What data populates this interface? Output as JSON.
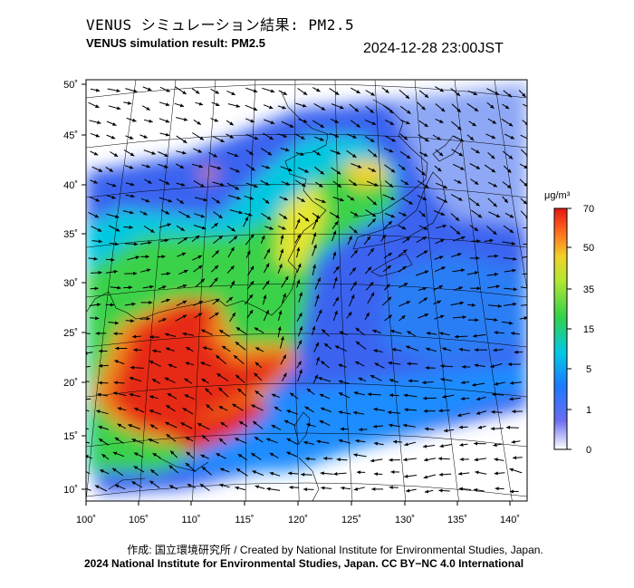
{
  "header": {
    "title_jp": "VENUS シミュレーション結果: PM2.5",
    "title_en": "VENUS simulation result: PM2.5",
    "timestamp": "2024-12-28 23:00JST"
  },
  "map": {
    "lon_range": [
      100,
      141
    ],
    "lat_range": [
      9,
      51
    ],
    "lon_ticks": [
      "100˚",
      "105˚",
      "110˚",
      "115˚",
      "120˚",
      "125˚",
      "130˚",
      "135˚",
      "140˚"
    ],
    "lat_ticks": [
      "50˚",
      "45˚",
      "40˚",
      "35˚",
      "30˚",
      "25˚",
      "20˚",
      "15˚",
      "10˚"
    ],
    "variable": "PM2.5",
    "overlay": "wind vectors"
  },
  "colorbar": {
    "unit": "μg/m³",
    "tick_labels": [
      "70",
      "50",
      "35",
      "15",
      "5",
      "1",
      "0"
    ],
    "colors": [
      "#ffffff",
      "#4a5cf0",
      "#1e8cff",
      "#00d2e6",
      "#32d24a",
      "#f0f032",
      "#ff8c1e",
      "#e61414"
    ]
  },
  "footer": {
    "credit": "作成: 国立環境研究所 / Created by National Institute for Environmental Studies, Japan.",
    "copyright": "2024 National Institute for Environmental Studies, Japan. CC BY−NC 4.0 International"
  }
}
